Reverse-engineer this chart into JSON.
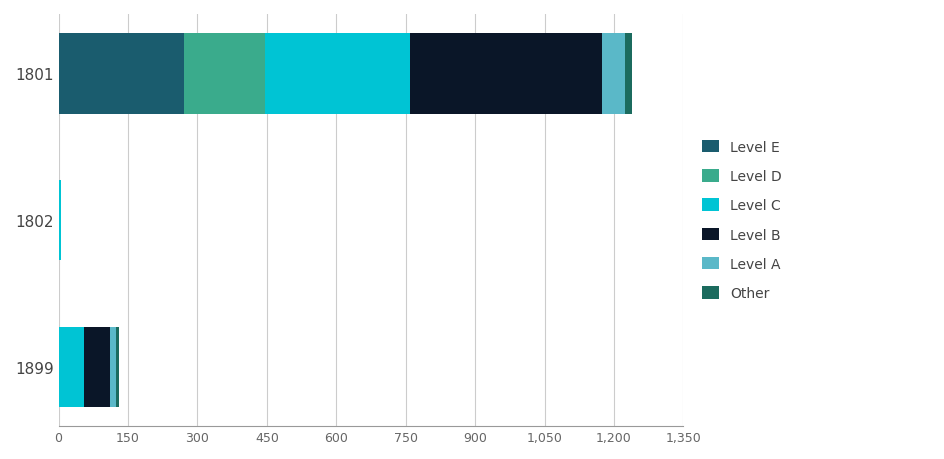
{
  "categories": [
    "1801",
    "1802",
    "1899"
  ],
  "series": {
    "Level E": [
      270,
      0,
      0
    ],
    "Level D": [
      175,
      0,
      0
    ],
    "Level C": [
      315,
      5,
      55
    ],
    "Level B": [
      415,
      0,
      55
    ],
    "Level A": [
      50,
      0,
      15
    ],
    "Other": [
      15,
      0,
      5
    ]
  },
  "colors": {
    "Level E": "#1a5c6e",
    "Level D": "#3aab8c",
    "Level C": "#00c4d4",
    "Level B": "#0a1628",
    "Level A": "#5ab8c8",
    "Other": "#1b6b5e"
  },
  "xlim": [
    0,
    1350
  ],
  "xticks": [
    0,
    150,
    300,
    450,
    600,
    750,
    900,
    1050,
    1200,
    1350
  ],
  "xtick_labels": [
    "0",
    "150",
    "300",
    "450",
    "600",
    "750",
    "900",
    "1,050",
    "1,200",
    "1,350"
  ],
  "background_color": "#ffffff",
  "grid_color": "#cccccc",
  "bar_height": 0.55
}
